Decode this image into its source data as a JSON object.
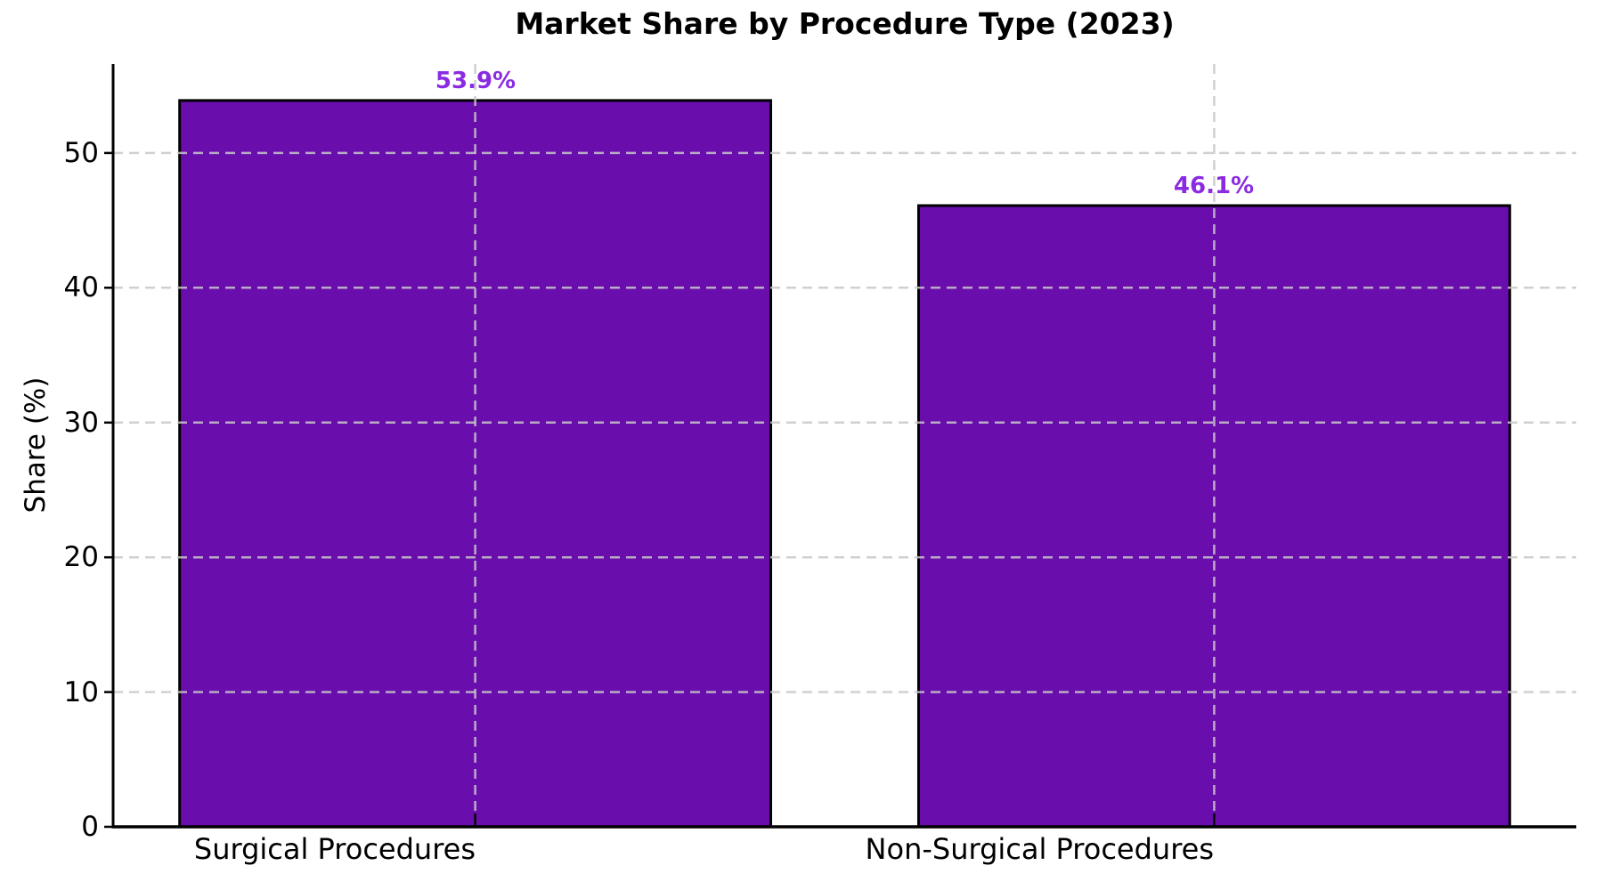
{
  "chart_data": {
    "type": "bar",
    "title": "Market Share by Procedure Type (2023)",
    "ylabel": "Share (%)",
    "xlabel": "",
    "categories": [
      "Surgical Procedures",
      "Non-Surgical Procedures"
    ],
    "values": [
      53.9,
      46.1
    ],
    "bar_value_labels": [
      "53.9%",
      "46.1%"
    ],
    "yticks": [
      0,
      10,
      20,
      30,
      40,
      50
    ],
    "ytick_labels": [
      "0",
      "10",
      "20",
      "30",
      "40",
      "50"
    ],
    "ylim": [
      0,
      56.6
    ],
    "grid": "dashed gridlines, horizontal at each y tick and vertical at each bar center, drawn over the bars",
    "legend": "none",
    "colors": {
      "bar_fill": "#6A0DAD",
      "bar_edge": "#000000",
      "value_label": "#8A2BE2",
      "gridline": "#c8c8c8",
      "axis": "#000000",
      "text": "#000000",
      "background": "#ffffff"
    }
  }
}
